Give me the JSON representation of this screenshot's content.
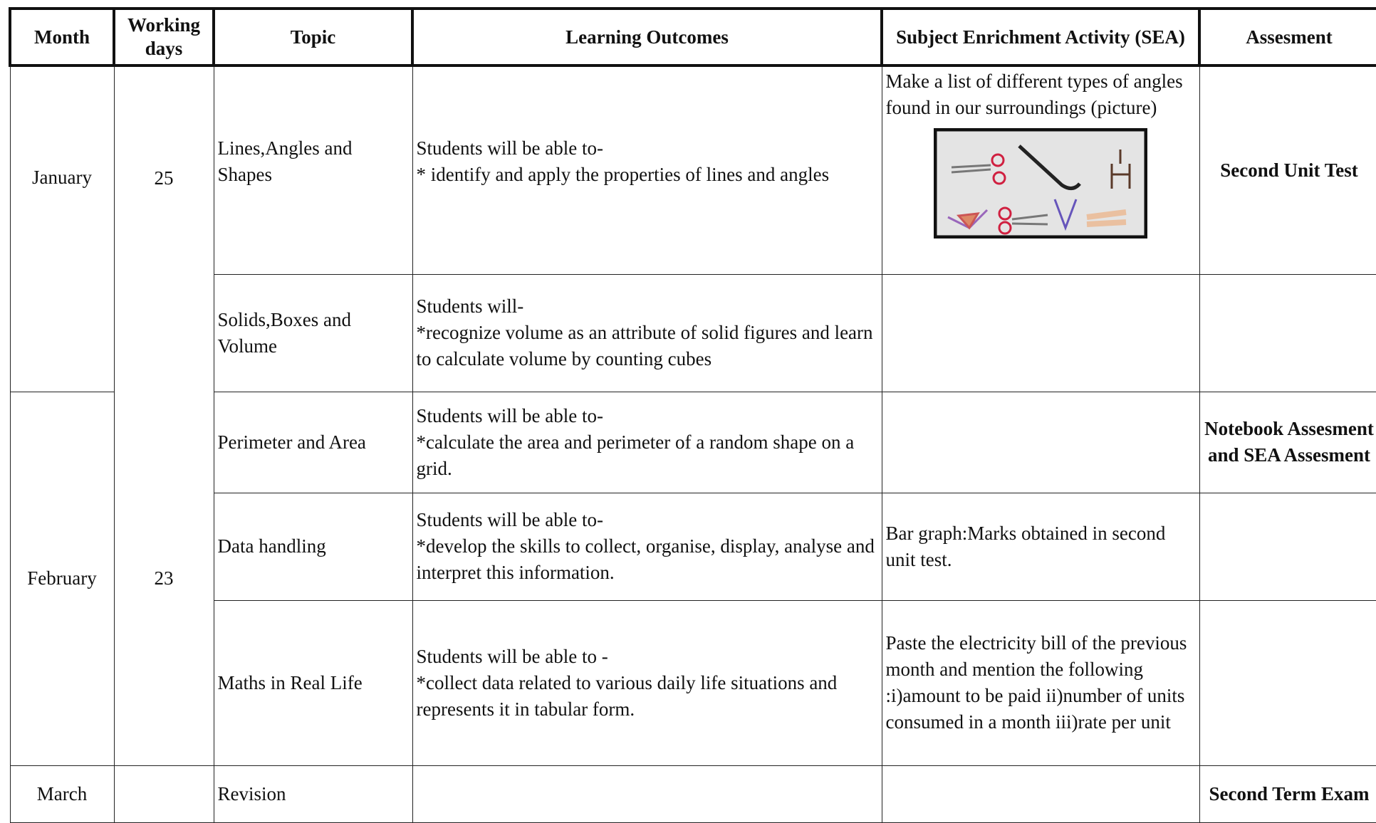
{
  "header": [
    "Month",
    "Working days",
    "Topic",
    "Learning Outcomes",
    "Subject Enrichment Activity (SEA)",
    "Assesment"
  ],
  "rows": [
    {
      "month": "January",
      "days": "25",
      "topic": "Lines,Angles and Shapes",
      "outcomes": [
        "Students will be able to-",
        "* identify and apply the properties of lines and angles"
      ],
      "sea": "Make a list of different types of angles found in our surroundings (picture)",
      "assessment": "Second Unit Test"
    },
    {
      "topic": "Solids,Boxes and Volume",
      "outcomes": [
        "Students will-",
        "*recognize volume as an attribute of solid figures and learn to calculate volume by counting cubes"
      ]
    },
    {
      "month": "February",
      "days": "23",
      "topic": "Perimeter and Area",
      "outcomes": [
        "Students will be able to-",
        "*calculate the area and perimeter of a random shape on a grid."
      ],
      "assessment": "Notebook Assesment and SEA Assesment"
    },
    {
      "topic": "Data handling",
      "outcomes": [
        "Students will be able to-",
        "*develop the skills to collect, organise, display, analyse and interpret this information."
      ],
      "sea": "Bar graph:Marks obtained in second unit test."
    },
    {
      "topic": "Maths in Real Life",
      "outcomes": [
        "Students will be able to -",
        "*collect data related to various daily life situations and represents it in tabular form."
      ],
      "sea": "Paste the electricity bill of the previous month and mention the following :i)amount to be paid ii)number of units consumed in a month iii)rate per unit"
    },
    {
      "month": "March",
      "topic": "Revision",
      "assessment": "Second Term Exam"
    }
  ]
}
